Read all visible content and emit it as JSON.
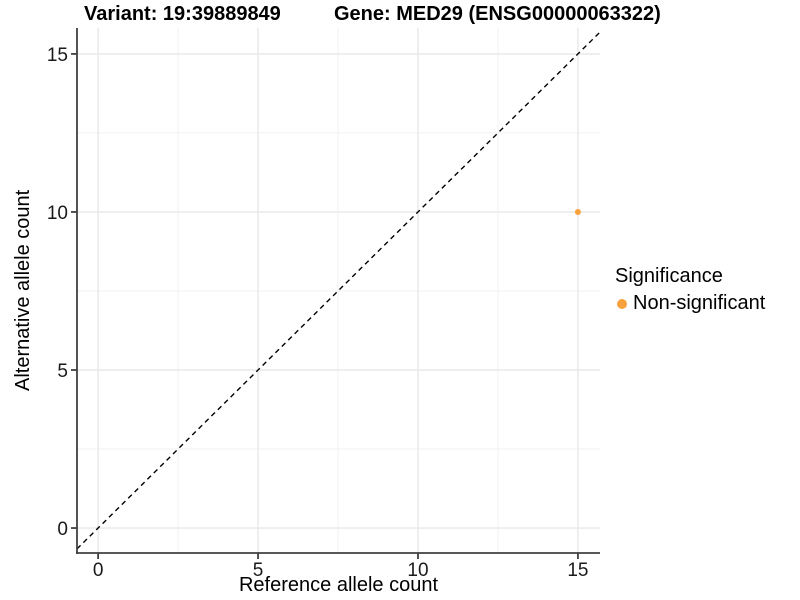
{
  "titles": {
    "variant": "Variant: 19:39889849",
    "gene": "Gene: MED29 (ENSG00000063322)"
  },
  "chart_data": {
    "type": "scatter",
    "title": "Variant: 19:39889849        Gene: MED29 (ENSG00000063322)",
    "title_left": "Variant: 19:39889849",
    "title_right": "Gene: MED29 (ENSG00000063322)",
    "xlabel": "Reference allele count",
    "ylabel": "Alternative allele count",
    "xlim": [
      0,
      15
    ],
    "ylim": [
      0,
      15
    ],
    "x_ticks": [
      0,
      5,
      10,
      15
    ],
    "y_ticks": [
      0,
      5,
      10,
      15
    ],
    "grid": true,
    "minor_grid": true,
    "identity_line": {
      "equation": "y = x",
      "style": "dashed",
      "color": "#000000"
    },
    "series": [
      {
        "name": "Non-significant",
        "color": "#F8A23E",
        "points": [
          {
            "x": 15,
            "y": 10
          }
        ]
      }
    ],
    "legend": {
      "title": "Significance",
      "position": "right",
      "items": [
        {
          "label": "Non-significant",
          "color": "#F8A23E"
        }
      ]
    }
  }
}
